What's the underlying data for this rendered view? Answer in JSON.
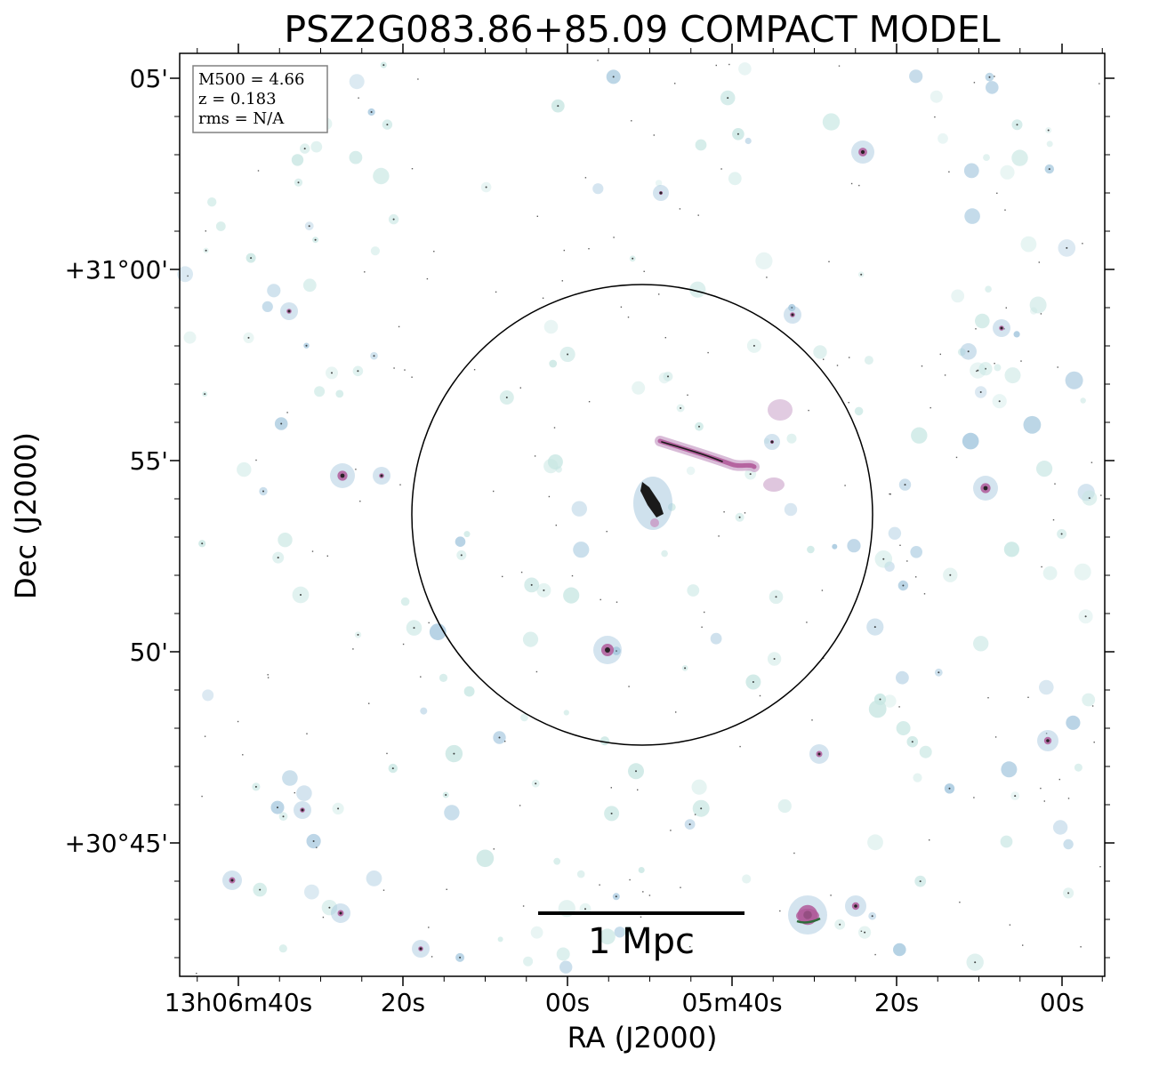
{
  "chart_data": {
    "type": "image",
    "title": "PSZ2G083.86+85.09 COMPACT MODEL",
    "xlabel": "RA (J2000)",
    "ylabel": "Dec (J2000)",
    "x_ticks": [
      "13h06m40s",
      "20s",
      "00s",
      "05m40s",
      "20s",
      "00s"
    ],
    "y_ticks": [
      "05'",
      "+31°00'",
      "55'",
      "50'",
      "+30°45'"
    ],
    "info_box": [
      "M500 = 4.66",
      "z = 0.183",
      "rms = N/A"
    ],
    "scale_bar_label": "1 Mpc",
    "colors": {
      "faint": "#c6e6e2",
      "blue": "#9fc4dc",
      "pink": "#c9a0c8",
      "magenta": "#b05a9a",
      "dark": "#1a1a1a",
      "green": "#2e6b3a"
    }
  }
}
